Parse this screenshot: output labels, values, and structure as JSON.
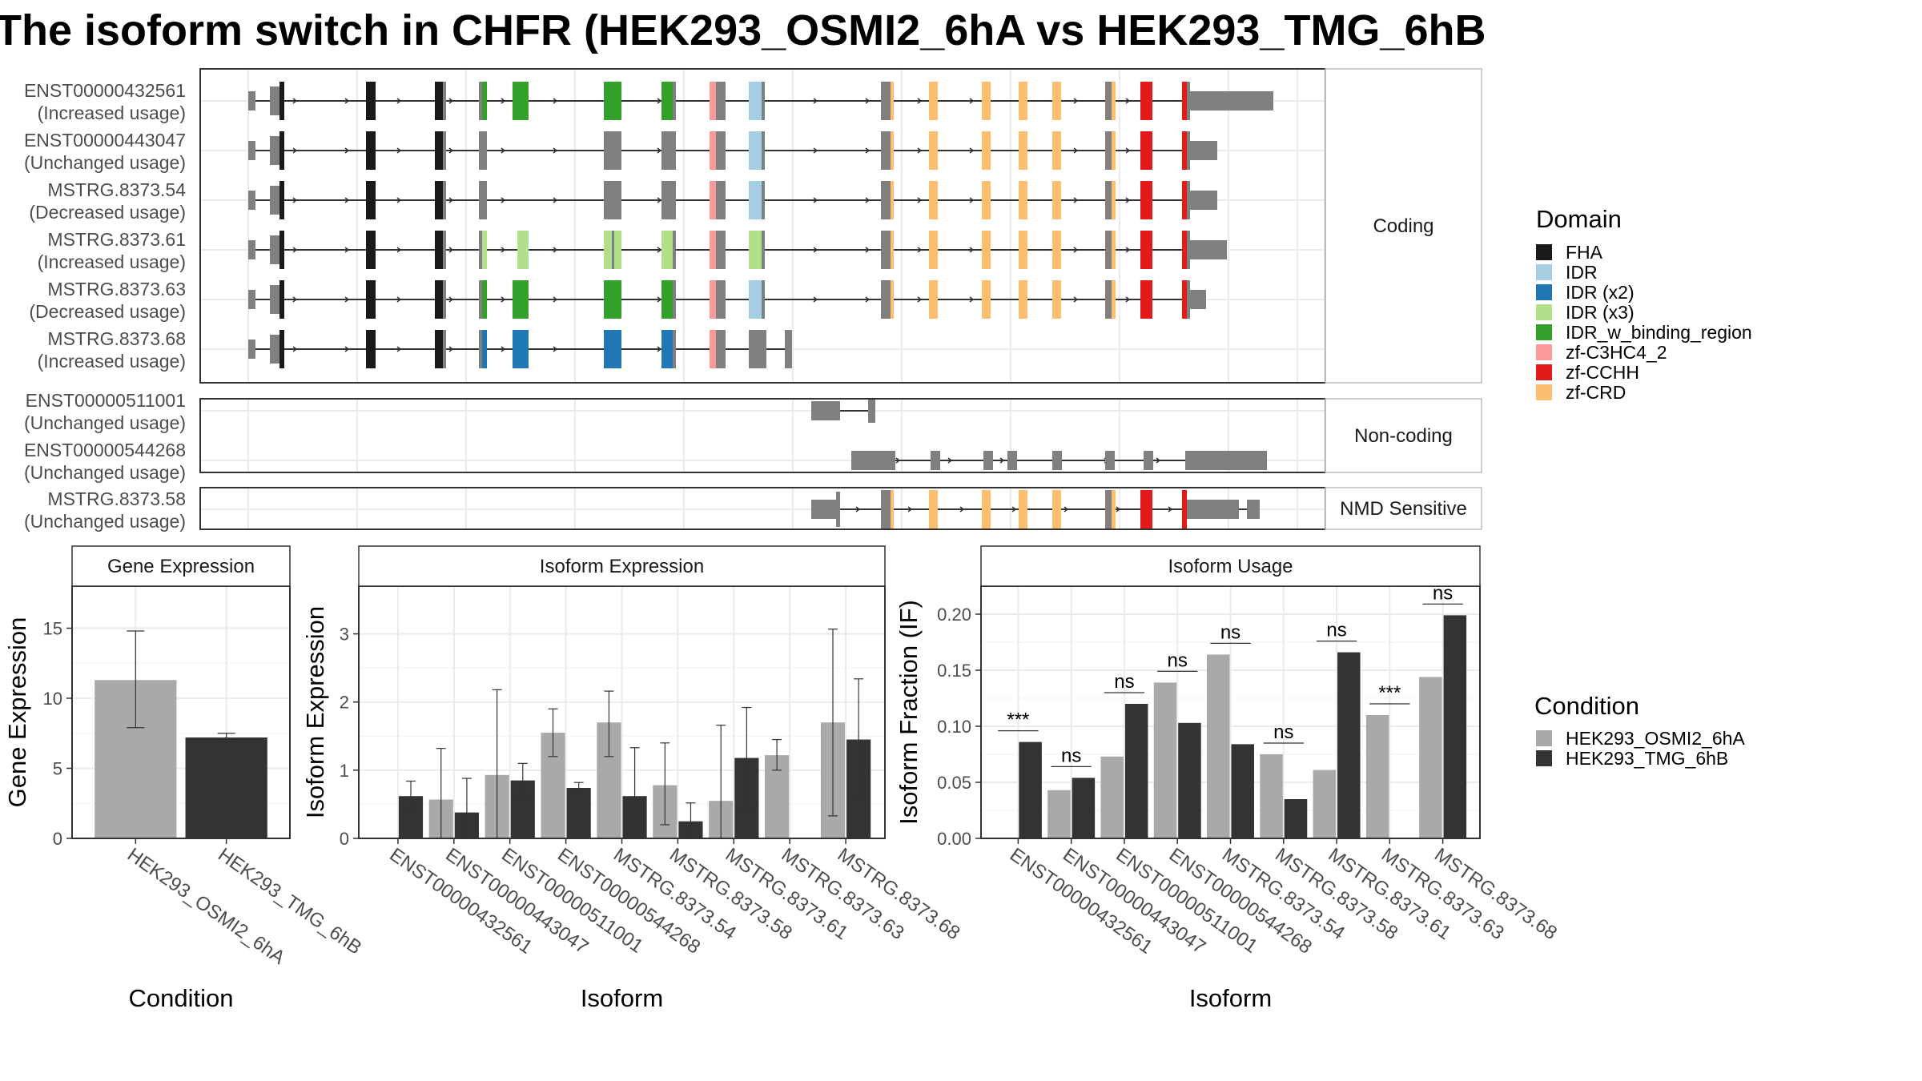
{
  "title": "The isoform switch in CHFR (HEK293_OSMI2_6hA vs HEK293_TMG_6hB",
  "colors": {
    "bar_a": "#A9A9A9",
    "bar_b": "#333333",
    "exon_gray": "#808080",
    "grid": "#ebebeb",
    "panel_border": "#333333",
    "strip_fill": "#ffffff",
    "domains": {
      "FHA": "#1a1a1a",
      "IDR": "#a6cee3",
      "IDR (x2)": "#1f78b4",
      "IDR (x3)": "#b2df8a",
      "IDR_w_binding_region": "#33a02c",
      "zf-C3HC4_2": "#fb9a99",
      "zf-CCHH": "#e31a1c",
      "zf-CRD": "#fdbf6f"
    }
  },
  "structure": {
    "groups": [
      {
        "label": "Coding",
        "transcripts": [
          {
            "id": "ENST00000432561",
            "usage": "(Increased usage)",
            "profile": "full_coding",
            "variant": "a",
            "tail": 2
          },
          {
            "id": "ENST00000443047",
            "usage": "(Unchanged usage)",
            "profile": "full_coding",
            "variant": "b",
            "tail": 3
          },
          {
            "id": "MSTRG.8373.54",
            "usage": "(Decreased usage)",
            "profile": "full_coding",
            "variant": "c",
            "tail": 3
          },
          {
            "id": "MSTRG.8373.61",
            "usage": "(Increased usage)",
            "profile": "full_coding",
            "variant": "d",
            "tail": 1
          },
          {
            "id": "MSTRG.8373.63",
            "usage": "(Decreased usage)",
            "profile": "full_coding",
            "variant": "a",
            "tail": 0
          },
          {
            "id": "MSTRG.8373.68",
            "usage": "(Increased usage)",
            "profile": "truncated",
            "variant": "e",
            "tail": 0
          }
        ]
      },
      {
        "label": "Non-coding",
        "transcripts": [
          {
            "id": "ENST00000511001",
            "usage": "(Unchanged usage)",
            "profile": "short_nc"
          },
          {
            "id": "ENST00000544268",
            "usage": "(Unchanged usage)",
            "profile": "long_nc"
          }
        ]
      },
      {
        "label": "NMD Sensitive",
        "transcripts": [
          {
            "id": "MSTRG.8373.58",
            "usage": "(Unchanged usage)",
            "profile": "nmd"
          }
        ]
      }
    ]
  },
  "legend_domain": {
    "title": "Domain",
    "items": [
      "FHA",
      "IDR",
      "IDR (x2)",
      "IDR (x3)",
      "IDR_w_binding_region",
      "zf-C3HC4_2",
      "zf-CCHH",
      "zf-CRD"
    ]
  },
  "legend_condition": {
    "title": "Condition",
    "items": [
      "HEK293_OSMI2_6hA",
      "HEK293_TMG_6hB"
    ]
  },
  "chart_data": [
    {
      "type": "bar",
      "title": "Gene Expression",
      "xlabel": "Condition",
      "ylabel": "Gene Expression",
      "ylim": [
        0,
        18
      ],
      "yticks": [
        0,
        5,
        10,
        15
      ],
      "categories": [
        "HEK293_OSMI2_6hA",
        "HEK293_TMG_6hB"
      ],
      "values": [
        11.3,
        7.2
      ],
      "error_low": [
        7.9,
        7.0
      ],
      "error_high": [
        14.8,
        7.5
      ]
    },
    {
      "type": "bar",
      "title": "Isoform Expression",
      "xlabel": "Isoform",
      "ylabel": "Isoform Expression",
      "ylim": [
        0,
        3.7
      ],
      "yticks": [
        0,
        1,
        2,
        3
      ],
      "categories": [
        "ENST00000432561",
        "ENST00000443047",
        "ENST00000511001",
        "ENST00000544268",
        "MSTRG.8373.54",
        "MSTRG.8373.58",
        "MSTRG.8373.61",
        "MSTRG.8373.63",
        "MSTRG.8373.68"
      ],
      "series": [
        {
          "name": "HEK293_OSMI2_6hA",
          "values": [
            0.0,
            0.57,
            0.93,
            1.55,
            1.7,
            0.78,
            0.55,
            1.22,
            1.7
          ],
          "error_low": [
            0.0,
            0.0,
            0.0,
            1.2,
            1.2,
            0.2,
            0.0,
            1.0,
            0.33
          ],
          "error_high": [
            0.0,
            1.32,
            2.18,
            1.9,
            2.16,
            1.4,
            1.66,
            1.45,
            3.07
          ]
        },
        {
          "name": "HEK293_TMG_6hB",
          "values": [
            0.62,
            0.38,
            0.85,
            0.74,
            0.62,
            0.25,
            1.18,
            0.0,
            1.45
          ],
          "error_low": [
            0.4,
            0.0,
            0.6,
            0.67,
            0.0,
            0.0,
            0.45,
            0.0,
            0.55
          ],
          "error_high": [
            0.84,
            0.88,
            1.1,
            0.82,
            1.33,
            0.52,
            1.92,
            0.0,
            2.34
          ]
        }
      ]
    },
    {
      "type": "bar",
      "title": "Isoform Usage",
      "xlabel": "Isoform",
      "ylabel": "Isoform Fraction (IF)",
      "ylim": [
        0,
        0.225
      ],
      "yticks": [
        0.0,
        0.05,
        0.1,
        0.15,
        0.2
      ],
      "ytick_labels": [
        "0.00",
        "0.05",
        "0.10",
        "0.15",
        "0.20"
      ],
      "categories": [
        "ENST00000432561",
        "ENST00000443047",
        "ENST00000511001",
        "ENST00000544268",
        "MSTRG.8373.54",
        "MSTRG.8373.58",
        "MSTRG.8373.61",
        "MSTRG.8373.63",
        "MSTRG.8373.68"
      ],
      "series": [
        {
          "name": "HEK293_OSMI2_6hA",
          "values": [
            0.0,
            0.043,
            0.073,
            0.139,
            0.164,
            0.075,
            0.061,
            0.11,
            0.144
          ]
        },
        {
          "name": "HEK293_TMG_6hB",
          "values": [
            0.086,
            0.054,
            0.12,
            0.103,
            0.084,
            0.035,
            0.166,
            0.0,
            0.199
          ]
        }
      ],
      "significance": [
        "***",
        "ns",
        "ns",
        "ns",
        "ns",
        "ns",
        "ns",
        "***",
        "ns"
      ]
    }
  ]
}
